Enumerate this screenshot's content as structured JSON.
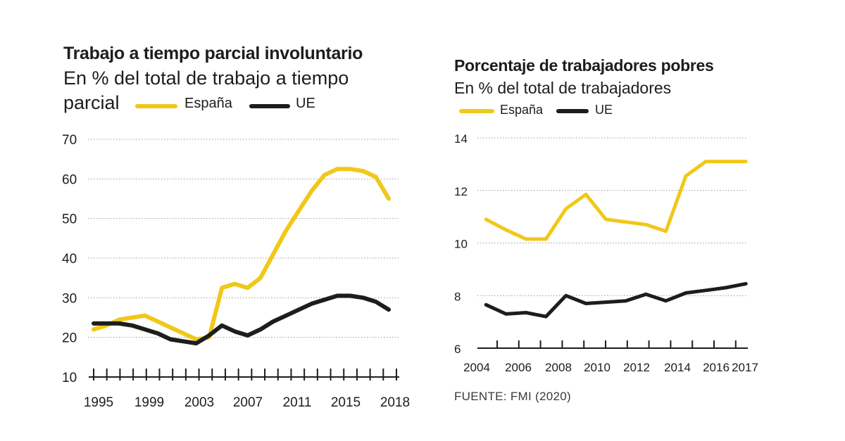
{
  "colors": {
    "spain": "#f0c818",
    "eu": "#1d1d1b",
    "grid": "#9a9a9a",
    "axis": "#1d1d1b"
  },
  "source": "FUENTE: FMI (2020)",
  "chart_data": [
    {
      "type": "line",
      "title": "Trabajo a tiempo parcial involuntario",
      "subtitle_line1": "En % del total de trabajo a tiempo",
      "subtitle_line2": "parcial",
      "ylim": [
        10,
        70
      ],
      "yticks": [
        10,
        20,
        30,
        40,
        50,
        60,
        70
      ],
      "xlim": [
        1995,
        2018
      ],
      "xtick_labels": [
        1995,
        1999,
        2003,
        2007,
        2011,
        2015,
        2018
      ],
      "grid": true,
      "legend_placement": "top",
      "series": [
        {
          "name": "España",
          "x": [
            1995,
            1996,
            1997,
            1998,
            1999,
            2000,
            2001,
            2002,
            2003,
            2004,
            2005,
            2006,
            2007,
            2008,
            2009,
            2010,
            2011,
            2012,
            2013,
            2014,
            2015,
            2016,
            2017,
            2018
          ],
          "y": [
            22,
            23,
            24.5,
            25,
            25.5,
            24,
            22.5,
            21,
            19.5,
            20,
            32.5,
            33.5,
            32.5,
            35,
            41,
            47,
            52,
            57,
            61,
            62.5,
            62.5,
            62,
            60.5,
            55
          ]
        },
        {
          "name": "UE",
          "x": [
            1995,
            1996,
            1997,
            1998,
            1999,
            2000,
            2001,
            2002,
            2003,
            2004,
            2005,
            2006,
            2007,
            2008,
            2009,
            2010,
            2011,
            2012,
            2013,
            2014,
            2015,
            2016,
            2017,
            2018
          ],
          "y": [
            23.5,
            23.5,
            23.5,
            23,
            22,
            21,
            19.5,
            19,
            18.5,
            20.5,
            23,
            21.5,
            20.5,
            22,
            24,
            25.5,
            27,
            28.5,
            29.5,
            30.5,
            30.5,
            30,
            29,
            27
          ]
        }
      ]
    },
    {
      "type": "line",
      "title": "Porcentaje de trabajadores pobres",
      "subtitle": "En % del total de trabajadores",
      "ylim": [
        6,
        14
      ],
      "yticks": [
        6,
        8,
        10,
        12,
        14
      ],
      "xlim": [
        2004,
        2017
      ],
      "xtick_labels": [
        2004,
        2006,
        2008,
        2010,
        2012,
        2014,
        2016,
        2017
      ],
      "grid": true,
      "legend_placement": "top",
      "series": [
        {
          "name": "España",
          "x": [
            2004.5,
            2005.5,
            2006.5,
            2007.5,
            2008.5,
            2009.5,
            2010.5,
            2011.5,
            2012.5,
            2013.5,
            2014.5,
            2015.5,
            2016.5,
            2017.5
          ],
          "y": [
            10.9,
            10.5,
            10.15,
            10.15,
            11.3,
            11.85,
            10.9,
            10.8,
            10.7,
            10.45,
            12.55,
            13.1,
            13.1,
            13.1
          ]
        },
        {
          "name": "UE",
          "x": [
            2004.5,
            2005.5,
            2006.5,
            2007.5,
            2008.5,
            2009.5,
            2010.5,
            2011.5,
            2012.5,
            2013.5,
            2014.5,
            2015.5,
            2016.5,
            2017.5
          ],
          "y": [
            7.65,
            7.3,
            7.35,
            7.2,
            8.0,
            7.7,
            7.75,
            7.8,
            8.05,
            7.8,
            8.1,
            8.2,
            8.3,
            8.45
          ]
        }
      ]
    }
  ]
}
